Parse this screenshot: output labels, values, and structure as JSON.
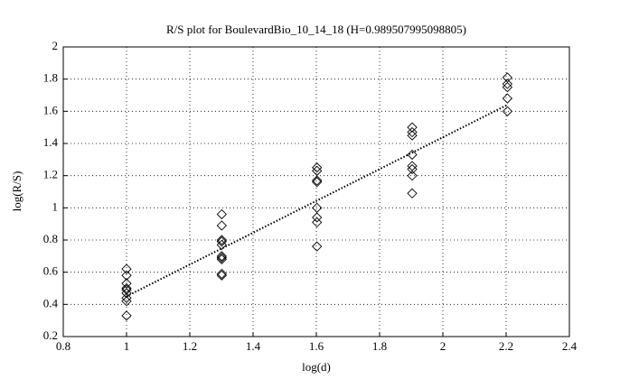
{
  "chart_data": {
    "type": "scatter",
    "title": "R/S plot for BoulevardBio_10_14_18 (H=0.989507995098805)",
    "x_label": "log(d)",
    "y_label": "log(R/S)",
    "xlim": [
      0.8,
      2.4
    ],
    "xticks": [
      0.8,
      1,
      1.2,
      1.4,
      1.6,
      1.8,
      2,
      2.2,
      2.4
    ],
    "ylim": [
      0.2,
      2
    ],
    "yticks": [
      0.2,
      0.4,
      0.6,
      0.8,
      1,
      1.2,
      1.4,
      1.6,
      1.8,
      2
    ],
    "grid": true,
    "series": [
      {
        "marker": "diamond",
        "color": "#000000",
        "x": [
          1,
          1,
          1,
          1,
          1,
          1,
          1,
          1,
          1,
          1.301,
          1.301,
          1.301,
          1.301,
          1.301,
          1.301,
          1.301,
          1.301,
          1.301,
          1.301,
          1.602,
          1.602,
          1.602,
          1.602,
          1.602,
          1.602,
          1.602,
          1.602,
          1.903,
          1.903,
          1.903,
          1.903,
          1.903,
          1.903,
          1.903,
          1.903,
          2.204,
          2.204,
          2.204,
          2.204,
          2.204
        ],
        "values": [
          0.62,
          0.58,
          0.53,
          0.5,
          0.49,
          0.47,
          0.44,
          0.42,
          0.33,
          0.96,
          0.89,
          0.8,
          0.79,
          0.77,
          0.7,
          0.69,
          0.68,
          0.59,
          0.58,
          1.25,
          1.23,
          1.17,
          1.16,
          1.0,
          0.94,
          0.91,
          0.76,
          1.5,
          1.47,
          1.45,
          1.33,
          1.26,
          1.24,
          1.2,
          1.09,
          1.81,
          1.77,
          1.75,
          1.68,
          1.6
        ]
      },
      {
        "marker": "dotted-line",
        "color": "#000000",
        "x": [
          1,
          2.204
        ],
        "values": [
          0.45,
          1.64
        ]
      }
    ]
  }
}
